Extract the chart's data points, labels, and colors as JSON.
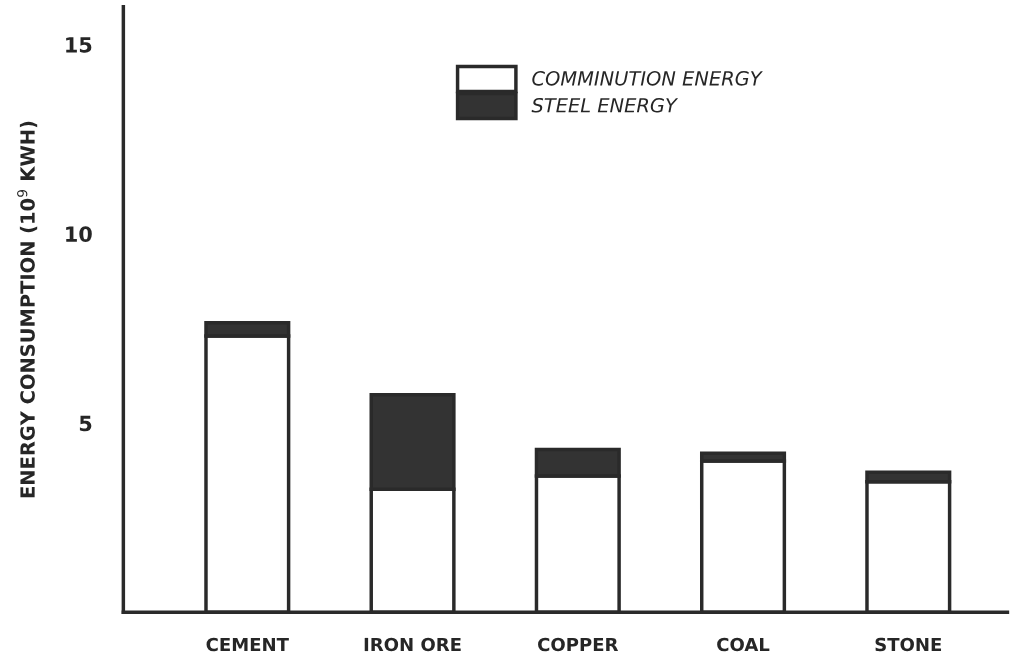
{
  "chart_data": {
    "type": "bar",
    "stacked": true,
    "categories": [
      "CEMENT",
      "IRON ORE",
      "COPPER",
      "COAL",
      "STONE"
    ],
    "series": [
      {
        "name": "COMMINUTION ENERGY",
        "color": "#ffffff",
        "values": [
          7.3,
          3.25,
          3.6,
          4.0,
          3.45
        ]
      },
      {
        "name": "STEEL ENERGY",
        "color": "#333333",
        "values": [
          0.35,
          2.5,
          0.7,
          0.2,
          0.25
        ]
      }
    ],
    "ylabel": "ENERGY CONSUMPTION (10$^{9}$ KWH)",
    "ylim": [
      0,
      16
    ],
    "yticks": [
      5,
      10,
      15
    ],
    "grid": false,
    "legend": "top"
  }
}
